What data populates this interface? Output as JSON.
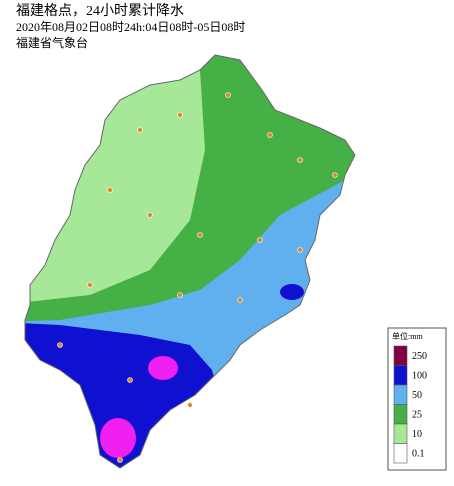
{
  "header": {
    "lines": [
      "福建格点，24小时累计降水",
      "2020年08月02日08时24h:04日08时-05日08时",
      "福建省气象台"
    ]
  },
  "legend": {
    "title": "单位:mm",
    "items": [
      {
        "label": 250,
        "color": "#800040"
      },
      {
        "label": 100,
        "color": "#1010d0"
      },
      {
        "label": 50,
        "color": "#60b0f0"
      },
      {
        "label": 25,
        "color": "#45b045"
      },
      {
        "label": 10,
        "color": "#a6e898"
      },
      {
        "label": 0.1,
        "color": "#ffffff"
      }
    ]
  }
}
